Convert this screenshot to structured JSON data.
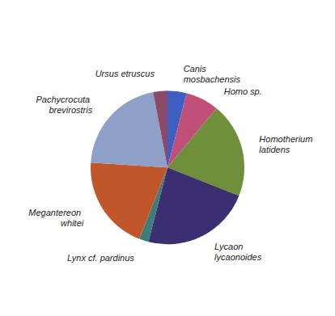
{
  "chart_data": {
    "type": "pie",
    "categories": [
      "Canis mosbachensis",
      "Homo sp.",
      "Homotherium latidens",
      "Lycaon lycaonoides",
      "Lynx cf. pardinus",
      "Megantereon whitei",
      "Pachycrocuta brevirostris",
      "Ursus etruscus"
    ],
    "values": [
      4,
      7,
      20,
      23,
      2,
      20,
      21,
      3
    ],
    "colors": [
      "#3d5fc4",
      "#c0507a",
      "#6f8f3a",
      "#3b2f72",
      "#3f7d7a",
      "#c0562a",
      "#8ea0c8",
      "#8a4a6a"
    ],
    "data_labels": false
  }
}
